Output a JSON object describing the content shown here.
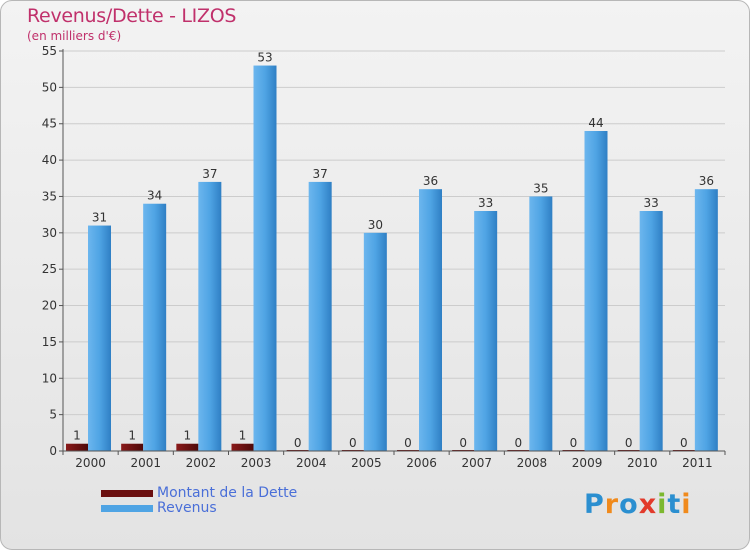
{
  "header": {
    "title": "Revenus/Dette - LIZOS",
    "subtitle": "(en milliers d'€)"
  },
  "legend": {
    "debt_label": "Montant de la Dette",
    "revenue_label": "Revenus"
  },
  "logo": {
    "text": "Proxiti",
    "letters": [
      {
        "char": "P",
        "color": "#2b8fd0"
      },
      {
        "char": "r",
        "color": "#f08a1c"
      },
      {
        "char": "o",
        "color": "#2b8fd0"
      },
      {
        "char": "x",
        "color": "#e23a2b"
      },
      {
        "char": "i",
        "color": "#7cb82f"
      },
      {
        "char": "t",
        "color": "#2b8fd0"
      },
      {
        "char": "i",
        "color": "#f08a1c"
      }
    ]
  },
  "colors": {
    "debt": "#6b0f0f",
    "revenue": "#4fa4e4",
    "revenue_dark": "#2f7fc4",
    "axis": "#555555",
    "grid": "#cccccc",
    "text": "#333333"
  },
  "chart_data": {
    "type": "bar",
    "categories": [
      "2000",
      "2001",
      "2002",
      "2003",
      "2004",
      "2005",
      "2006",
      "2007",
      "2008",
      "2009",
      "2010",
      "2011"
    ],
    "series": [
      {
        "name": "Montant de la Dette",
        "values": [
          1,
          1,
          1,
          1,
          0,
          0,
          0,
          0,
          0,
          0,
          0,
          0
        ]
      },
      {
        "name": "Revenus",
        "values": [
          31,
          34,
          37,
          53,
          37,
          30,
          36,
          33,
          35,
          44,
          33,
          36
        ]
      }
    ],
    "title": "Revenus/Dette - LIZOS",
    "subtitle": "(en milliers d'€)",
    "xlabel": "",
    "ylabel": "",
    "ylim": [
      0,
      55
    ],
    "yticks": [
      0,
      5,
      10,
      15,
      20,
      25,
      30,
      35,
      40,
      45,
      50,
      55
    ],
    "grid": true,
    "legend_position": "bottom-left"
  }
}
